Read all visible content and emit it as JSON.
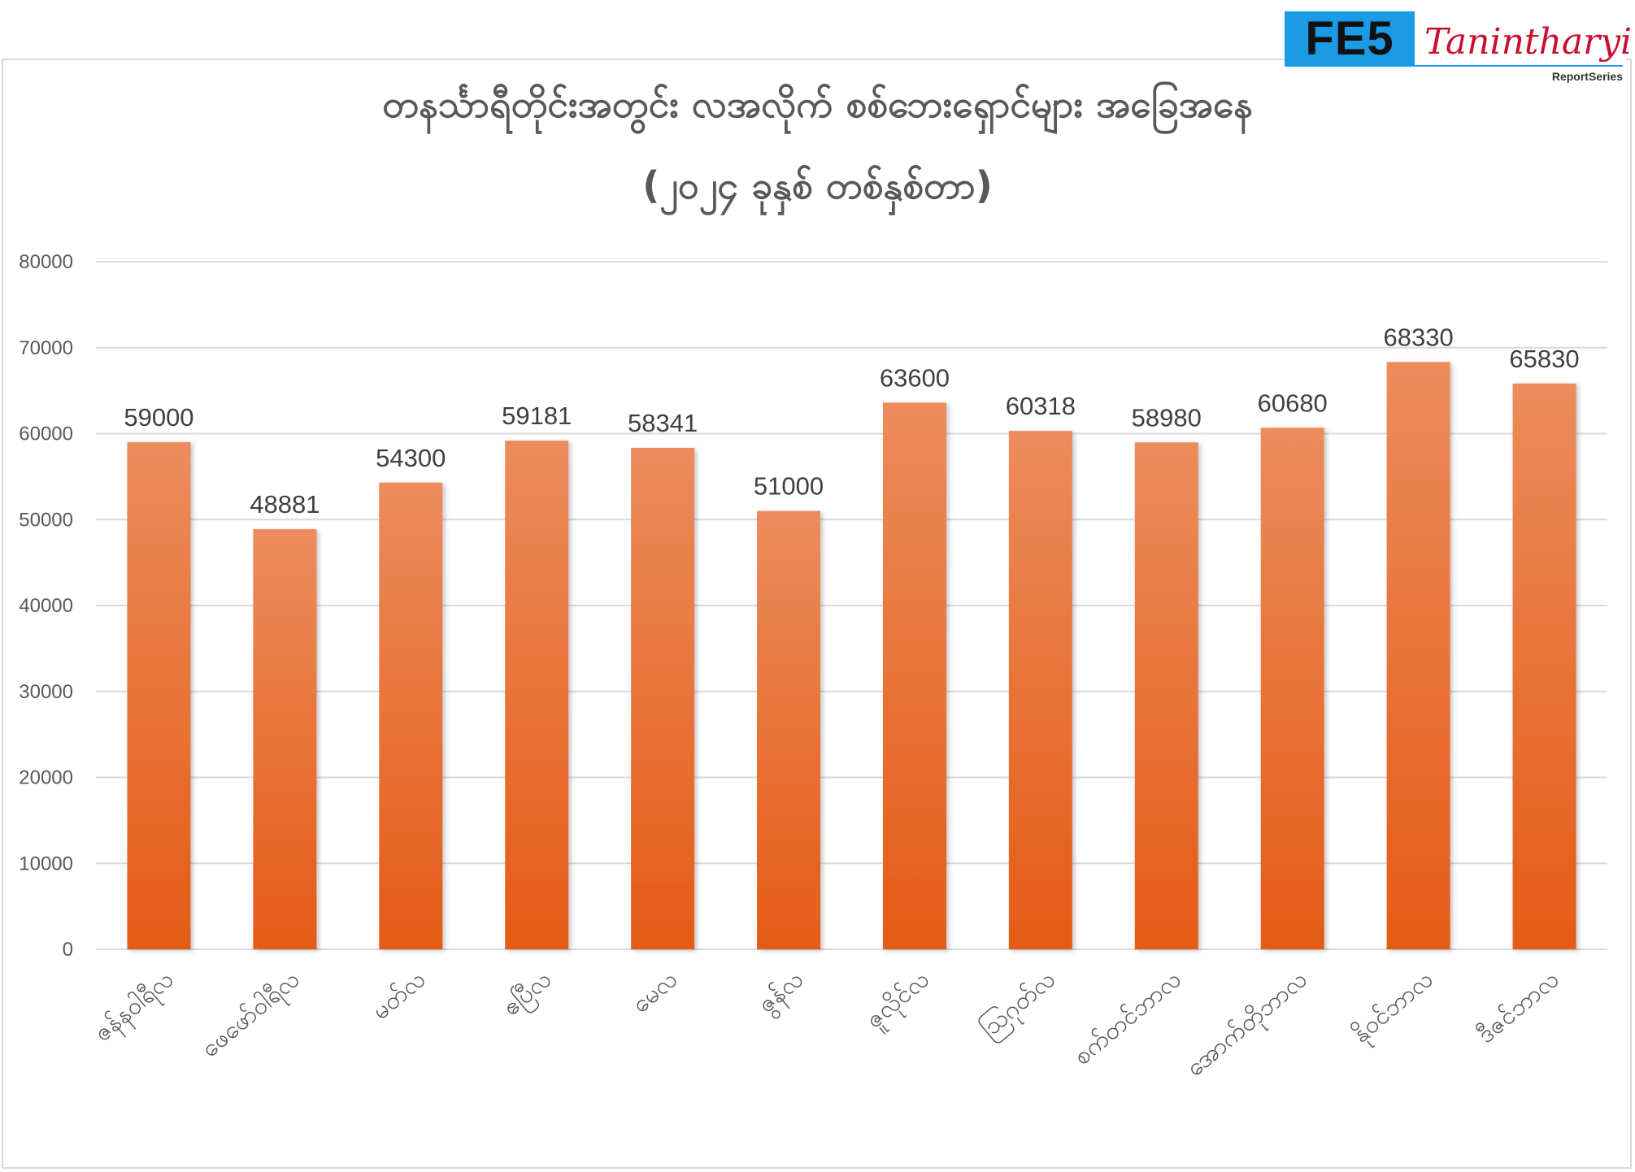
{
  "logo": {
    "mark": "FE5",
    "name": "Tanintharyi",
    "series": "ReportSeries"
  },
  "title": {
    "line1": "တနင်္သာရီတိုင်းအတွင်း လအလိုက် စစ်ဘေးရှောင်များ အခြေအနေ",
    "line2": "(၂၀၂၄ ခုနှစ် တစ်နှစ်တာ)"
  },
  "colors": {
    "bar_top": "#ec8c5c",
    "bar_bottom": "#e55b16",
    "grid": "#d9d9d9",
    "axis_text": "#595959",
    "label_text": "#404040"
  },
  "chart_data": {
    "type": "bar",
    "title": "တနင်္သာရီတိုင်းအတွင်း လအလိုက် စစ်ဘေးရှောင်များ အခြေအနေ (၂၀၂၄ ခုနှစ် တစ်နှစ်တာ)",
    "categories": [
      "ဇန်နဝါရီလ",
      "ဖေဖော်ဝါရီလ",
      "မတ်လ",
      "ဧပြီလ",
      "မေလ",
      "ဇွန်လ",
      "ဇူလိုင်လ",
      "ဩဂုတ်လ",
      "စက်တင်ဘာလ",
      "အောက်တိုဘာလ",
      "နိုဝင်ဘာလ",
      "ဒီဇင်ဘာလ"
    ],
    "values": [
      59000,
      48881,
      54300,
      59181,
      58341,
      51000,
      63600,
      60318,
      58980,
      60680,
      68330,
      65830
    ],
    "ylim": [
      0,
      80000
    ],
    "yticks": [
      "0",
      "10000",
      "20000",
      "30000",
      "40000",
      "50000",
      "60000",
      "70000",
      "80000"
    ],
    "grid": true,
    "legend": "none",
    "data_labels": true
  }
}
